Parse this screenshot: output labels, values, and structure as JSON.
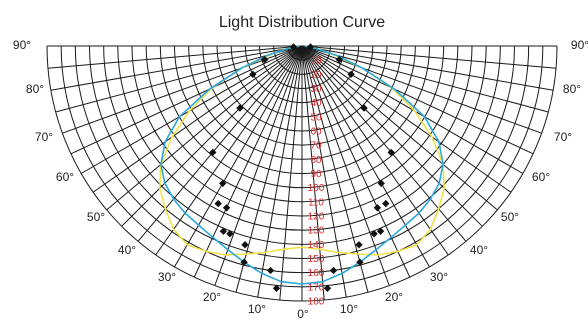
{
  "chart_data": {
    "type": "polar",
    "title": "Light Distribution Curve",
    "angle_labels": [
      "90°",
      "80°",
      "70°",
      "60°",
      "50°",
      "40°",
      "30°",
      "20°",
      "10°",
      "0°",
      "10°",
      "20°",
      "30°",
      "40°",
      "50°",
      "60°",
      "70°",
      "80°",
      "90°"
    ],
    "angles_deg": [
      -90,
      -80,
      -70,
      -60,
      -50,
      -40,
      -30,
      -20,
      -10,
      0,
      10,
      20,
      30,
      40,
      50,
      60,
      70,
      80,
      90
    ],
    "radial_ticks": [
      10,
      20,
      30,
      40,
      50,
      60,
      70,
      80,
      90,
      100,
      110,
      120,
      130,
      140,
      150,
      160,
      170,
      180
    ],
    "radial_tick_labels": [
      "10",
      "20",
      "30",
      "40",
      "50",
      "60",
      "70",
      "80",
      "90",
      "100",
      "110",
      "120",
      "130",
      "140",
      "150",
      "160",
      "170",
      "180"
    ],
    "rlim": [
      0,
      180
    ],
    "grid": true,
    "series": [
      {
        "color": "#F0E24A",
        "angles": [
          -90,
          -80,
          -75,
          -70,
          -65,
          -60,
          -55,
          -50,
          -45,
          -40,
          -35,
          -30,
          -25,
          -20,
          -15,
          -10,
          -5,
          0,
          5,
          10,
          15,
          20,
          25,
          30,
          35,
          40,
          45,
          50,
          55,
          60,
          65,
          70,
          75,
          80,
          90
        ],
        "values": [
          2,
          12,
          22,
          45,
          70,
          92,
          112,
          130,
          142,
          150,
          158,
          162,
          160,
          157,
          152,
          148,
          144,
          142,
          144,
          148,
          152,
          157,
          160,
          162,
          158,
          150,
          142,
          130,
          112,
          92,
          70,
          45,
          22,
          12,
          2
        ]
      },
      {
        "color": "#29A8DF",
        "angles": [
          -90,
          -80,
          -75,
          -70,
          -65,
          -60,
          -55,
          -50,
          -45,
          -40,
          -35,
          -30,
          -25,
          -20,
          -15,
          -10,
          -5,
          0,
          5,
          10,
          15,
          20,
          25,
          30,
          35,
          40,
          45,
          50,
          55,
          60,
          65,
          70,
          75,
          80,
          90
        ],
        "values": [
          2,
          10,
          25,
          45,
          72,
          100,
          118,
          130,
          137,
          141,
          144,
          146,
          149,
          153,
          158,
          163,
          167,
          168,
          167,
          163,
          158,
          153,
          149,
          146,
          144,
          141,
          137,
          130,
          118,
          100,
          72,
          45,
          25,
          10,
          2
        ]
      }
    ],
    "markers": [
      {
        "angle": -84,
        "value": 6
      },
      {
        "angle": -70,
        "value": 28
      },
      {
        "angle": -60,
        "value": 40
      },
      {
        "angle": -45,
        "value": 62
      },
      {
        "angle": -40,
        "value": 98
      },
      {
        "angle": -30,
        "value": 112
      },
      {
        "angle": -28,
        "value": 126
      },
      {
        "angle": -25,
        "value": 126
      },
      {
        "angle": -23,
        "value": 142
      },
      {
        "angle": -21,
        "value": 142
      },
      {
        "angle": -16,
        "value": 146
      },
      {
        "angle": -15,
        "value": 158
      },
      {
        "angle": -8,
        "value": 160
      },
      {
        "angle": -6,
        "value": 172
      },
      {
        "angle": 6,
        "value": 172
      },
      {
        "angle": 8,
        "value": 160
      },
      {
        "angle": 15,
        "value": 158
      },
      {
        "angle": 16,
        "value": 146
      },
      {
        "angle": 21,
        "value": 142
      },
      {
        "angle": 23,
        "value": 142
      },
      {
        "angle": 25,
        "value": 126
      },
      {
        "angle": 28,
        "value": 126
      },
      {
        "angle": 30,
        "value": 112
      },
      {
        "angle": 40,
        "value": 98
      },
      {
        "angle": 45,
        "value": 62
      },
      {
        "angle": 60,
        "value": 40
      },
      {
        "angle": 70,
        "value": 28
      },
      {
        "angle": 84,
        "value": 6
      }
    ],
    "colors": {
      "grid": "#1a1a1a",
      "radial_labels": "#d9262c",
      "markers": "#111111"
    }
  }
}
